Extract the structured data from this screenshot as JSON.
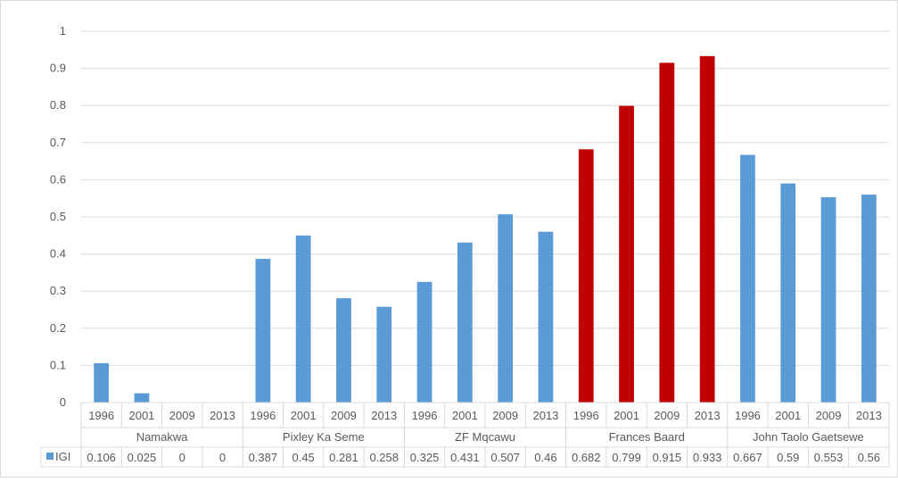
{
  "chart_data": {
    "type": "bar",
    "title": "",
    "xlabel": "",
    "ylabel": "",
    "ylim": [
      0,
      1
    ],
    "yticks": [
      "0",
      "0.1",
      "0.2",
      "0.3",
      "0.4",
      "0.5",
      "0.6",
      "0.7",
      "0.8",
      "0.9",
      "1"
    ],
    "grid": true,
    "legend": "data-table",
    "groups": [
      "Namakwa",
      "Pixley Ka Seme",
      "ZF Mqcawu",
      "Frances Baard",
      "John Taolo Gaetsewe"
    ],
    "categories": [
      "1996",
      "2001",
      "2009",
      "2013",
      "1996",
      "2001",
      "2009",
      "2013",
      "1996",
      "2001",
      "2009",
      "2013",
      "1996",
      "2001",
      "2009",
      "2013",
      "1996",
      "2001",
      "2009",
      "2013"
    ],
    "series": [
      {
        "name": "IGI",
        "values": [
          0.106,
          0.025,
          0,
          0,
          0.387,
          0.45,
          0.281,
          0.258,
          0.325,
          0.431,
          0.507,
          0.46,
          0.682,
          0.799,
          0.915,
          0.933,
          0.667,
          0.59,
          0.553,
          0.56
        ],
        "labels": [
          "0.106",
          "0.025",
          "0",
          "0",
          "0.387",
          "0.45",
          "0.281",
          "0.258",
          "0.325",
          "0.431",
          "0.507",
          "0.46",
          "0.682",
          "0.799",
          "0.915",
          "0.933",
          "0.667",
          "0.59",
          "0.553",
          "0.56"
        ]
      }
    ],
    "colors": {
      "default": "#5b9bd5",
      "highlight": "#c00000",
      "highlight_group": "Frances Baard",
      "axis": "#d9d9d9",
      "text": "#595959"
    }
  }
}
